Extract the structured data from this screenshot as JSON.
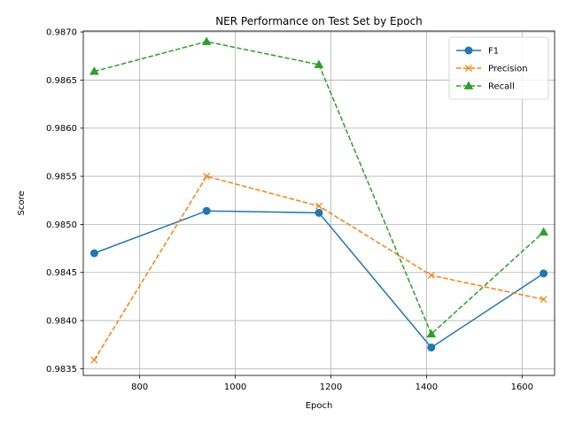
{
  "chart_data": {
    "type": "line",
    "title": "NER Performance on Test Set by Epoch",
    "xlabel": "Epoch",
    "ylabel": "Score",
    "x": [
      705,
      940,
      1175,
      1410,
      1645
    ],
    "xlim": [
      682,
      1668
    ],
    "ylim": [
      0.98343,
      0.98701
    ],
    "x_ticks": [
      800,
      1000,
      1200,
      1400,
      1600
    ],
    "x_tick_labels": [
      "800",
      "1000",
      "1200",
      "1400",
      "1600"
    ],
    "y_ticks": [
      0.9835,
      0.984,
      0.9845,
      0.985,
      0.9855,
      0.986,
      0.9865,
      0.987
    ],
    "y_tick_labels": [
      "0.9835",
      "0.9840",
      "0.9845",
      "0.9850",
      "0.9855",
      "0.9860",
      "0.9865",
      "0.9870"
    ],
    "grid": true,
    "legend_position": "top-right",
    "series": [
      {
        "name": "F1",
        "values": [
          0.9847,
          0.98514,
          0.98512,
          0.98372,
          0.98449
        ],
        "color": "#1f77b4",
        "marker": "circle",
        "linestyle": "solid"
      },
      {
        "name": "Precision",
        "values": [
          0.98359,
          0.9855,
          0.98519,
          0.98447,
          0.98422
        ],
        "color": "#ff7f0e",
        "marker": "x",
        "linestyle": "dashed"
      },
      {
        "name": "Recall",
        "values": [
          0.98659,
          0.9869,
          0.98666,
          0.98386,
          0.98492
        ],
        "color": "#2ca02c",
        "marker": "triangle",
        "linestyle": "dashed"
      }
    ]
  }
}
